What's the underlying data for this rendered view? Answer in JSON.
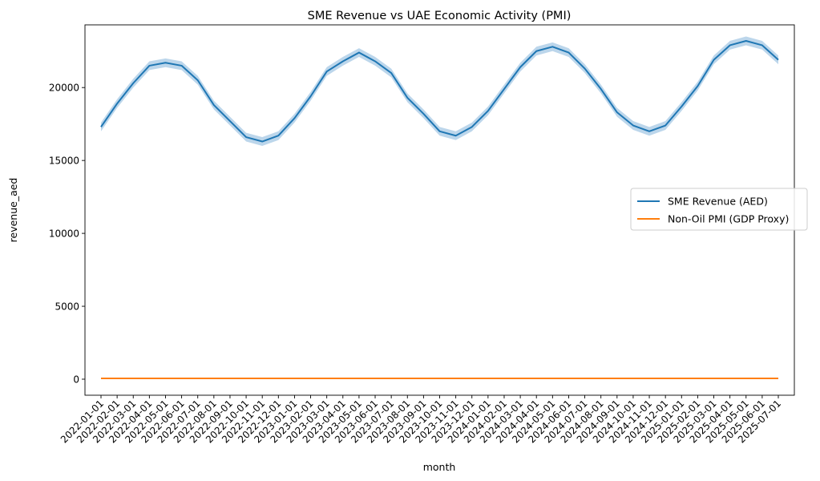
{
  "chart_data": {
    "type": "line",
    "title": "SME Revenue vs UAE Economic Activity (PMI)",
    "xlabel": "month",
    "ylabel": "revenue_aed",
    "ylim": [
      -1100,
      24300
    ],
    "yticks": [
      0,
      5000,
      10000,
      15000,
      20000
    ],
    "grid": false,
    "legend_position": "center-right",
    "categories": [
      "2022-01-01",
      "2022-02-01",
      "2022-03-01",
      "2022-04-01",
      "2022-05-01",
      "2022-06-01",
      "2022-07-01",
      "2022-08-01",
      "2022-09-01",
      "2022-10-01",
      "2022-11-01",
      "2022-12-01",
      "2023-01-01",
      "2023-02-01",
      "2023-03-01",
      "2023-04-01",
      "2023-05-01",
      "2023-06-01",
      "2023-07-01",
      "2023-08-01",
      "2023-09-01",
      "2023-10-01",
      "2023-11-01",
      "2023-12-01",
      "2024-01-01",
      "2024-02-01",
      "2024-03-01",
      "2024-04-01",
      "2024-05-01",
      "2024-06-01",
      "2024-07-01",
      "2024-08-01",
      "2024-09-01",
      "2024-10-01",
      "2024-11-01",
      "2024-12-01",
      "2025-01-01",
      "2025-02-01",
      "2025-03-01",
      "2025-04-01",
      "2025-05-01",
      "2025-06-01",
      "2025-07-01"
    ],
    "series": [
      {
        "name": "SME Revenue (AED)",
        "color": "#1f77b4",
        "band_color": "#a6c8e4",
        "values": [
          17300,
          18900,
          20300,
          21500,
          21700,
          21500,
          20500,
          18800,
          17700,
          16600,
          16300,
          16700,
          17900,
          19400,
          21100,
          21800,
          22400,
          21800,
          21000,
          19300,
          18200,
          17000,
          16700,
          17300,
          18400,
          19900,
          21400,
          22500,
          22800,
          22400,
          21300,
          19900,
          18300,
          17400,
          17000,
          17400,
          18700,
          20100,
          21900,
          22900,
          23200,
          22900,
          21900
        ],
        "band_halfwidth": 300
      },
      {
        "name": "Non-Oil PMI (GDP Proxy)",
        "color": "#ff7f0e",
        "values": [
          54.2,
          54.5,
          54.8,
          55.0,
          54.9,
          54.6,
          54.3,
          54.1,
          54.4,
          54.7,
          55.1,
          55.3,
          55.2,
          54.9,
          54.6,
          54.4,
          54.8,
          55.0,
          55.3,
          55.1,
          54.7,
          54.5,
          54.6,
          54.9,
          55.2,
          55.4,
          55.1,
          54.8,
          54.6,
          54.7,
          55.0,
          55.3,
          55.5,
          55.2,
          54.9,
          54.7,
          54.8,
          55.1,
          55.4,
          55.2,
          54.9,
          54.7,
          54.8
        ]
      }
    ]
  }
}
